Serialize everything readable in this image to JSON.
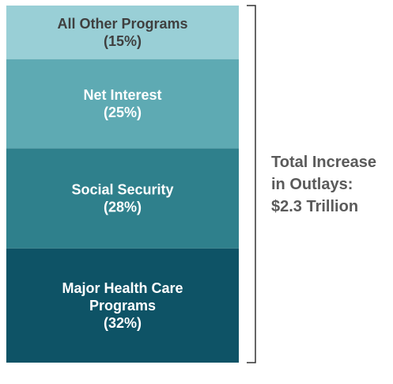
{
  "chart_data": {
    "type": "bar",
    "stacked": true,
    "unit": "percent of total increase in outlays",
    "categories": [
      "Total Increase in Outlays"
    ],
    "series": [
      {
        "name": "Major Health Care Programs",
        "value": 32,
        "label_lines": [
          "Major Health Care",
          "Programs",
          "(32%)"
        ],
        "color": "#0e5366",
        "text_color": "#ffffff"
      },
      {
        "name": "Social Security",
        "value": 28,
        "label_lines": [
          "Social Security",
          "(28%)"
        ],
        "color": "#2f808c",
        "text_color": "#ffffff"
      },
      {
        "name": "Net Interest",
        "value": 25,
        "label_lines": [
          "Net Interest",
          "(25%)"
        ],
        "color": "#5eaab3",
        "text_color": "#ffffff"
      },
      {
        "name": "All Other Programs",
        "value": 15,
        "label_lines": [
          "All Other Programs",
          "(15%)"
        ],
        "color": "#99cfd6",
        "text_color": "#3f3f3f"
      }
    ],
    "total_label_lines": [
      "Total Increase",
      "in Outlays:",
      "$2.3 Trillion"
    ]
  }
}
